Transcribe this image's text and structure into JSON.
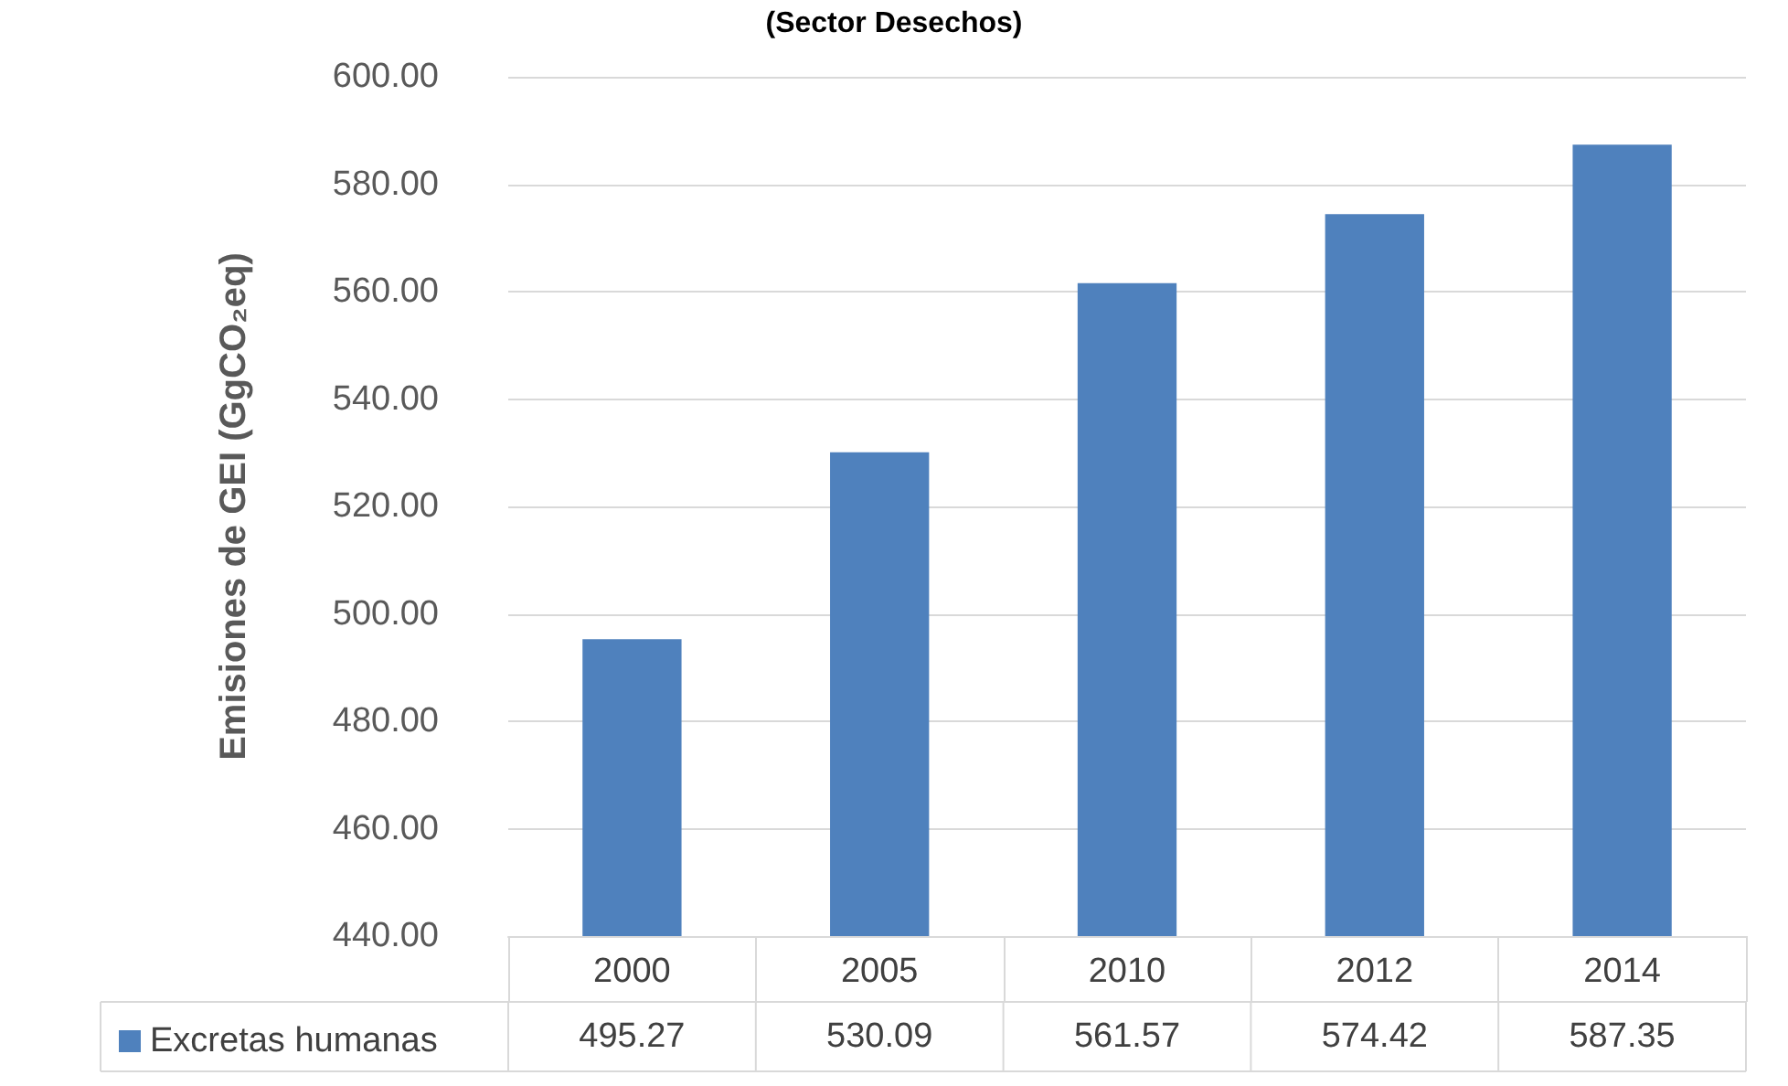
{
  "chart_data": {
    "type": "bar",
    "title": "(Sector Desechos)",
    "ylabel": "Emisiones de GEI (GgCO₂eq)",
    "categories": [
      "2000",
      "2005",
      "2010",
      "2012",
      "2014"
    ],
    "series": [
      {
        "name": "Excretas humanas",
        "color": "#4f81bd",
        "values": [
          495.27,
          530.09,
          561.57,
          574.42,
          587.35
        ]
      }
    ],
    "ylim": [
      440,
      600
    ],
    "yticks": [
      {
        "value": 440,
        "label": "440.00"
      },
      {
        "value": 460,
        "label": "460.00"
      },
      {
        "value": 480,
        "label": "480.00"
      },
      {
        "value": 500,
        "label": "500.00"
      },
      {
        "value": 520,
        "label": "520.00"
      },
      {
        "value": 540,
        "label": "540.00"
      },
      {
        "value": 560,
        "label": "560.00"
      },
      {
        "value": 580,
        "label": "580.00"
      },
      {
        "value": 600,
        "label": "600.00"
      }
    ],
    "grid": "y",
    "legend": "bottom left",
    "data_labels": true
  }
}
